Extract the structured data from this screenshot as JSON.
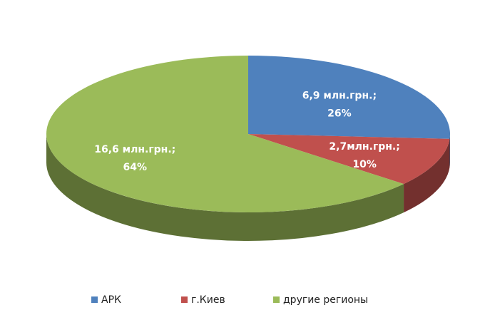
{
  "chart_data": {
    "type": "pie",
    "categories": [
      "АРК",
      "г.Киев",
      "другие регионы"
    ],
    "values": [
      26,
      10,
      64
    ],
    "value_labels": [
      "26%",
      "10%",
      "64%"
    ],
    "amount_labels": [
      "6,9 млн.грн.;",
      "2,7млн.грн.;",
      "16,6 млн.грн.;"
    ],
    "colors": [
      "#4f81bd",
      "#c0504d",
      "#9bbb59"
    ],
    "legend": "bottom"
  }
}
